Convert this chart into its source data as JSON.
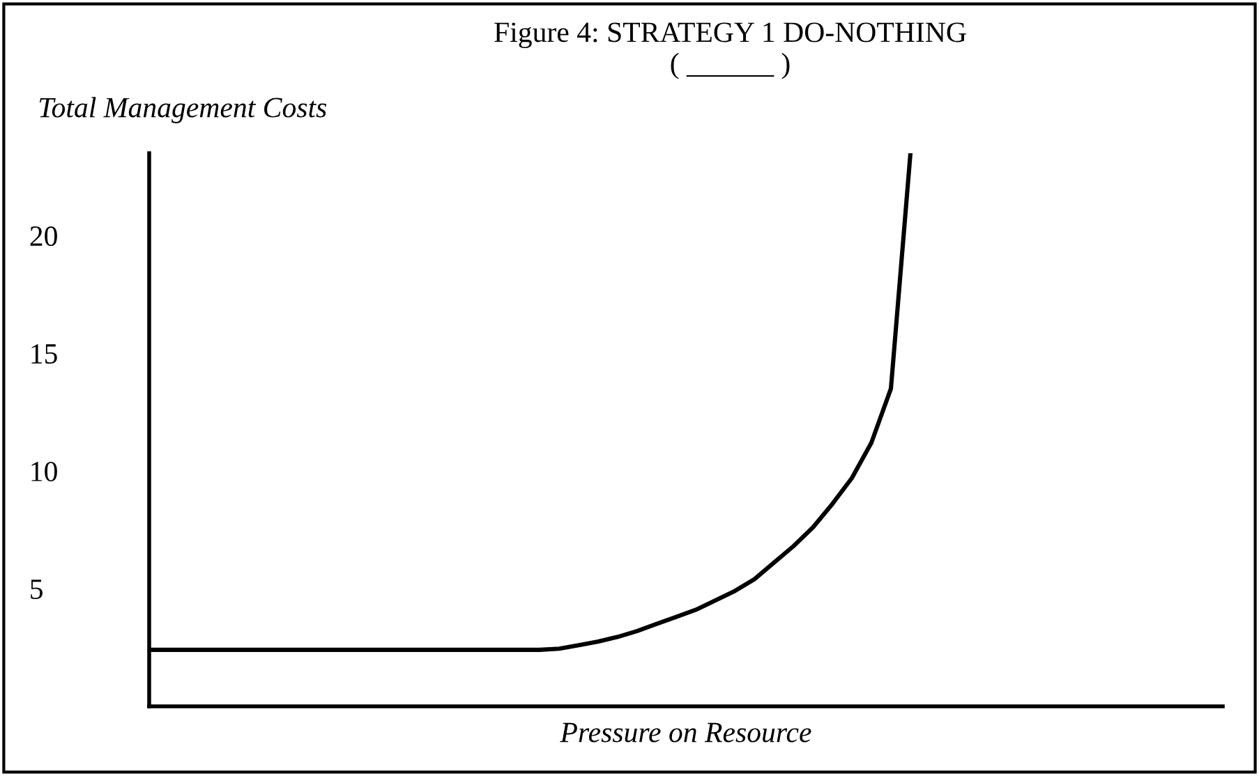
{
  "chart_data": {
    "type": "line",
    "title": "Figure 4: STRATEGY 1 DO-NOTHING",
    "subtitle": "( ______ )",
    "ylabel": "Total Management Costs",
    "xlabel": "Pressure on Resource",
    "categories": [
      null,
      null,
      null,
      null,
      null,
      null,
      null,
      null,
      null,
      null,
      null,
      null,
      null,
      null,
      null,
      null,
      null,
      null,
      null,
      null,
      null,
      null,
      null,
      null,
      null,
      null,
      null,
      null,
      null,
      null,
      null,
      null,
      null,
      null,
      null,
      null,
      null,
      null,
      null,
      null,
      null,
      null,
      null,
      null,
      null,
      null,
      null,
      null,
      null,
      null,
      null,
      null,
      null,
      null,
      null,
      null
    ],
    "series": [
      {
        "color": "#000000",
        "values": [
          2.4,
          2.4,
          2.4,
          2.4,
          2.4,
          2.4,
          2.4,
          2.4,
          2.4,
          2.4,
          2.4,
          2.4,
          2.4,
          2.4,
          2.4,
          2.4,
          2.4,
          2.4,
          2.4,
          2.4,
          2.4,
          2.45,
          2.6,
          2.75,
          2.95,
          3.2,
          3.5,
          3.8,
          4.1,
          4.5,
          4.9,
          5.4,
          6.1,
          6.8,
          7.6,
          8.6,
          9.7,
          11.2,
          13.5,
          23.5,
          null,
          null,
          null,
          null,
          null,
          null,
          null,
          null,
          null,
          null,
          null,
          null,
          null,
          null,
          null,
          null
        ]
      }
    ],
    "ylim": [
      0,
      23.5
    ],
    "yticks": [
      5,
      10,
      15,
      20
    ],
    "tick_labels": "y",
    "grid": false,
    "legend": false,
    "marker": "none",
    "line_style": "solid"
  }
}
